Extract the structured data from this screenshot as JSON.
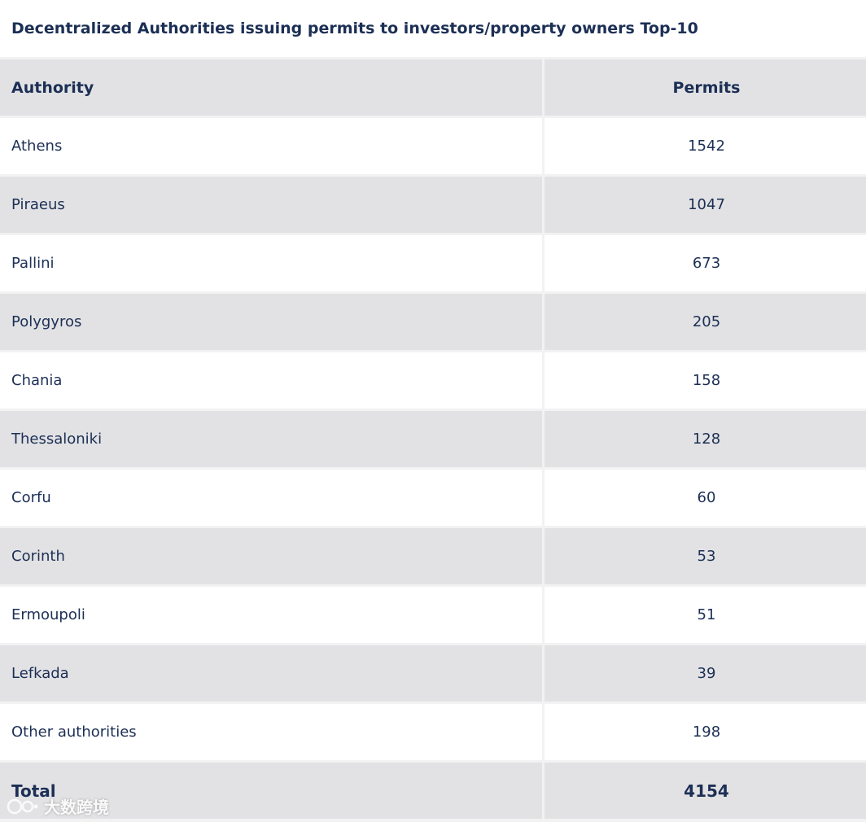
{
  "title": "Decentralized Authorities issuing permits to investors/property owners Top-10",
  "table": {
    "headers": [
      "Authority",
      "Permits"
    ],
    "rows": [
      {
        "authority": "Athens",
        "permits": "1542"
      },
      {
        "authority": "Piraeus",
        "permits": "1047"
      },
      {
        "authority": "Pallini",
        "permits": "673"
      },
      {
        "authority": "Polygyros",
        "permits": "205"
      },
      {
        "authority": "Chania",
        "permits": "158"
      },
      {
        "authority": "Thessaloniki",
        "permits": "128"
      },
      {
        "authority": "Corfu",
        "permits": "60"
      },
      {
        "authority": "Corinth",
        "permits": "53"
      },
      {
        "authority": "Ermoupoli",
        "permits": "51"
      },
      {
        "authority": "Lefkada",
        "permits": "39"
      },
      {
        "authority": "Other authorities",
        "permits": "198"
      }
    ],
    "total": {
      "label": "Total",
      "value": "4154"
    }
  },
  "watermark": {
    "text": "大数跨境",
    "icon": "brand-logo-icon"
  },
  "colors": {
    "text": "#1c2f55",
    "row_gray": "#e2e2e4",
    "row_white": "#ffffff"
  }
}
